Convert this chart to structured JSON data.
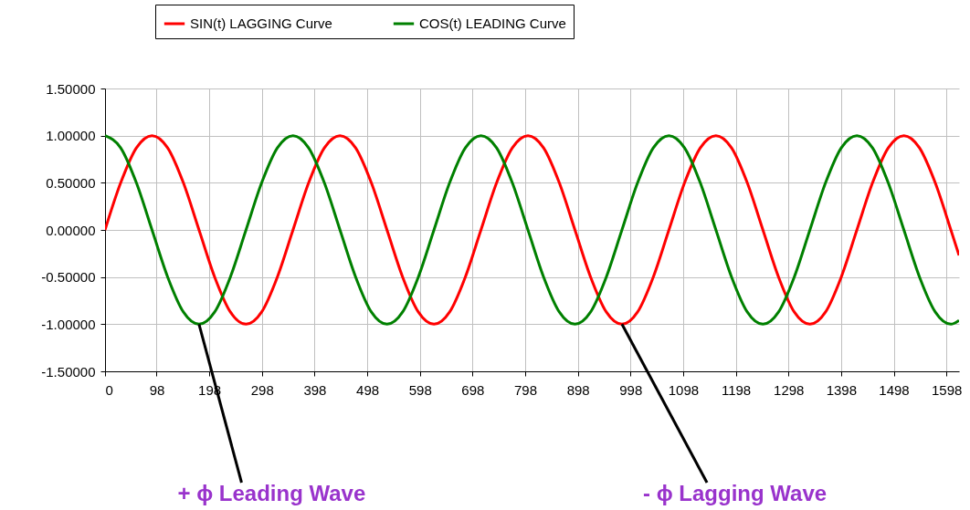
{
  "chart_data": {
    "type": "line",
    "x": [
      0,
      29.75,
      59.5,
      89.25,
      119,
      148.75,
      178.5,
      208.25,
      238,
      267.75,
      297.5,
      327.25,
      357,
      386.75,
      416.5,
      446.25,
      476,
      505.75,
      535.5,
      565.25,
      595,
      624.75,
      654.5,
      684.25,
      714,
      743.75,
      773.5,
      803.25,
      833,
      862.75,
      892.5,
      922.25,
      952,
      981.75,
      1011.5,
      1041.25,
      1071,
      1100.75,
      1130.5,
      1160.25,
      1190,
      1219.75,
      1249.5,
      1279.25,
      1309,
      1338.75,
      1368.5,
      1398.25,
      1428,
      1457.75,
      1487.5,
      1517.25,
      1547,
      1576.75,
      1606.5,
      1622
    ],
    "series": [
      {
        "name": "SIN(t) LAGGING Curve",
        "color": "#ff0000",
        "values": [
          0,
          0.5,
          0.87,
          1,
          0.87,
          0.5,
          0,
          -0.5,
          -0.87,
          -1,
          -0.87,
          -0.5,
          0,
          0.5,
          0.87,
          1,
          0.87,
          0.5,
          0,
          -0.5,
          -0.87,
          -1,
          -0.87,
          -0.5,
          0,
          0.5,
          0.87,
          1,
          0.87,
          0.5,
          0,
          -0.5,
          -0.87,
          -1,
          -0.87,
          -0.5,
          0,
          0.5,
          0.87,
          1,
          0.87,
          0.5,
          0,
          -0.5,
          -0.87,
          -1,
          -0.87,
          -0.5,
          0,
          0.5,
          0.87,
          1,
          0.87,
          0.5,
          0,
          -0.27
        ]
      },
      {
        "name": "COS(t) LEADING Curve",
        "color": "#008000",
        "values": [
          1,
          0.87,
          0.5,
          0,
          -0.5,
          -0.87,
          -1,
          -0.87,
          -0.5,
          0,
          0.5,
          0.87,
          1,
          0.87,
          0.5,
          0,
          -0.5,
          -0.87,
          -1,
          -0.87,
          -0.5,
          0,
          0.5,
          0.87,
          1,
          0.87,
          0.5,
          0,
          -0.5,
          -0.87,
          -1,
          -0.87,
          -0.5,
          0,
          0.5,
          0.87,
          1,
          0.87,
          0.5,
          0,
          -0.5,
          -0.87,
          -1,
          -0.87,
          -0.5,
          0,
          0.5,
          0.87,
          1,
          0.87,
          0.5,
          0,
          -0.5,
          -0.87,
          -1,
          -0.96
        ]
      }
    ],
    "xlim": [
      0,
      1622
    ],
    "xticks": [
      0,
      98,
      198,
      298,
      398,
      498,
      598,
      698,
      798,
      898,
      998,
      1098,
      1198,
      1298,
      1398,
      1498,
      1598
    ],
    "ylim": [
      -1.5,
      1.5
    ],
    "yticks": [
      {
        "value": -1.5,
        "label": "-1.50000"
      },
      {
        "value": -1,
        "label": "-1.00000"
      },
      {
        "value": -0.5,
        "label": "-0.50000"
      },
      {
        "value": 0,
        "label": "0.00000"
      },
      {
        "value": 0.5,
        "label": "0.50000"
      },
      {
        "value": 1,
        "label": "1.00000"
      },
      {
        "value": 1.5,
        "label": "1.50000"
      }
    ],
    "grid": true,
    "legend": "top",
    "marker": "none",
    "line_style": "solid",
    "annotations": [
      {
        "text": "+ ϕ Leading Wave",
        "x": 178.5,
        "y": -1
      },
      {
        "text": "- ϕ Lagging Wave",
        "x": 981.75,
        "y": -1
      }
    ]
  }
}
